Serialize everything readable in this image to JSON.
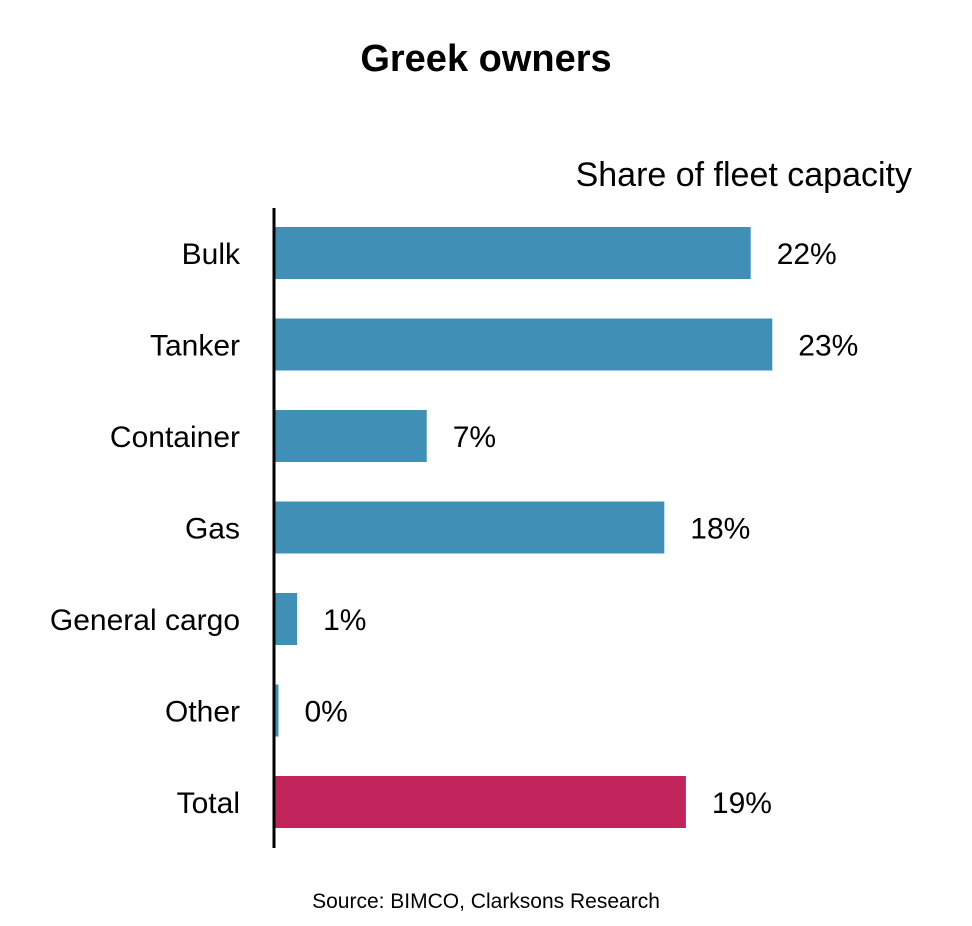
{
  "chart_data": {
    "type": "bar",
    "orientation": "horizontal",
    "title": "Greek owners",
    "subtitle": "Share of fleet capacity",
    "source": "Source: BIMCO, Clarksons Research",
    "categories": [
      "Bulk",
      "Tanker",
      "Container",
      "Gas",
      "General cargo",
      "Other",
      "Total"
    ],
    "values": [
      22,
      23,
      7,
      18,
      1,
      0,
      19
    ],
    "value_labels": [
      "22%",
      "23%",
      "7%",
      "18%",
      "1%",
      "0%",
      "19%"
    ],
    "value_unit": "%",
    "xlim": [
      0,
      25
    ],
    "grid": false,
    "legend": "none",
    "colors": {
      "default": "#3f8fb6",
      "highlight": "#c0245a",
      "highlight_category": "Total"
    }
  }
}
